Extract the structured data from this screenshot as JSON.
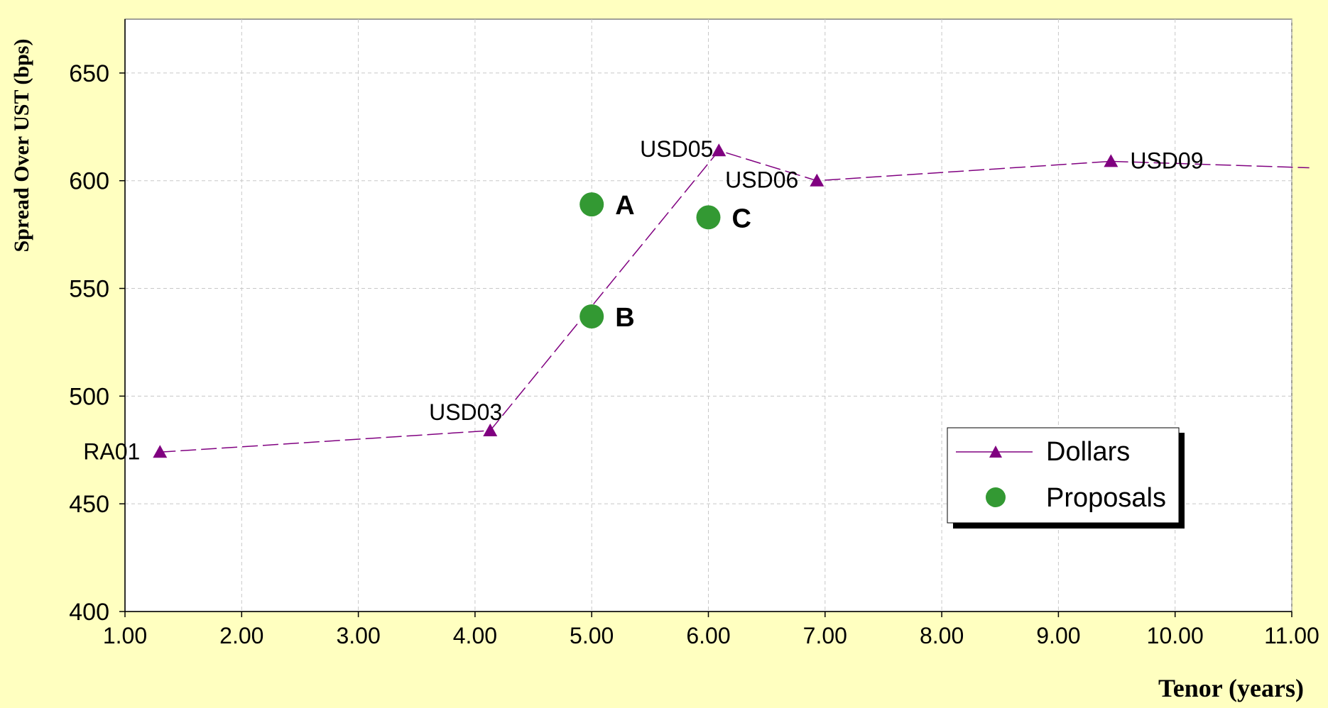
{
  "chart_data": {
    "type": "scatter",
    "title": "",
    "xlabel": "Tenor (years)",
    "ylabel": "Spread Over UST (bps)",
    "xlim": [
      1.0,
      11.0
    ],
    "ylim": [
      400,
      675
    ],
    "x_ticks": [
      1.0,
      2.0,
      3.0,
      4.0,
      5.0,
      6.0,
      7.0,
      8.0,
      9.0,
      10.0,
      11.0
    ],
    "x_tick_labels": [
      "1.00",
      "2.00",
      "3.00",
      "4.00",
      "5.00",
      "6.00",
      "7.00",
      "8.00",
      "9.00",
      "10.00",
      "11.00"
    ],
    "y_ticks": [
      400,
      450,
      500,
      550,
      600,
      650
    ],
    "y_tick_labels": [
      "400",
      "450",
      "500",
      "550",
      "600",
      "650"
    ],
    "grid": true,
    "legend_position": "bottom-right",
    "series": [
      {
        "name": "Dollars",
        "style": "dashed-line-triangle",
        "color": "#800080",
        "points": [
          {
            "x": 1.3,
            "y": 474,
            "label": "RA01"
          },
          {
            "x": 4.13,
            "y": 484,
            "label": "USD03"
          },
          {
            "x": 6.09,
            "y": 614,
            "label": "USD05"
          },
          {
            "x": 6.93,
            "y": 600,
            "label": "USD06"
          },
          {
            "x": 9.45,
            "y": 609,
            "label": "USD09"
          },
          {
            "x": 11.15,
            "y": 606,
            "label": ""
          }
        ]
      },
      {
        "name": "Proposals",
        "style": "circle",
        "color": "#339933",
        "points": [
          {
            "x": 5.0,
            "y": 589,
            "label": "A"
          },
          {
            "x": 5.0,
            "y": 537,
            "label": "B"
          },
          {
            "x": 6.0,
            "y": 583,
            "label": "C"
          }
        ]
      }
    ]
  }
}
